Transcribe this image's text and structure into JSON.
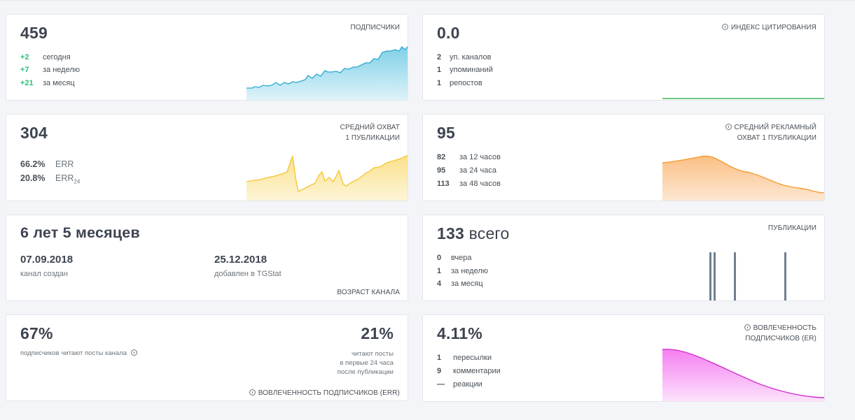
{
  "subscribers": {
    "value": "459",
    "caption": "ПОДПИСЧИКИ",
    "stats": [
      {
        "num": "+2",
        "label": "сегодня"
      },
      {
        "num": "+7",
        "label": "за неделю"
      },
      {
        "num": "+21",
        "label": "за месяц"
      }
    ],
    "color": "#2aa9cf"
  },
  "citation": {
    "value": "0.0",
    "caption": "ИНДЕКС ЦИТИРОВАНИЯ",
    "icon": "info-icon",
    "stats": [
      {
        "num": "2",
        "label": "уп. каналов"
      },
      {
        "num": "1",
        "label": "упоминаний"
      },
      {
        "num": "1",
        "label": "репостов"
      }
    ],
    "color": "#3cb55a"
  },
  "reach": {
    "value": "304",
    "caption_line1": "СРЕДНИЙ ОХВАТ",
    "caption_line2": "1 ПУБЛИКАЦИИ",
    "err_value": "66.2%",
    "err_label": "ERR",
    "err24_value": "20.8%",
    "err24_label": "ERR",
    "err24_sub": "24",
    "color": "#f5c42d"
  },
  "ad_reach": {
    "value": "95",
    "caption_line1": "СРЕДНИЙ РЕКЛАМНЫЙ",
    "caption_line2": "ОХВАТ 1 ПУБЛИКАЦИИ",
    "stats": [
      {
        "num": "82",
        "label": "за 12 часов"
      },
      {
        "num": "95",
        "label": "за 24 часа"
      },
      {
        "num": "113",
        "label": "за 48 часов"
      }
    ],
    "color": "#f59a2e"
  },
  "age": {
    "value": "6 лет 5 месяцев",
    "created_date": "07.09.2018",
    "created_label": "канал создан",
    "added_date": "25.12.2018",
    "added_label": "добавлен в TGStat",
    "caption": "ВОЗРАСТ КАНАЛА"
  },
  "posts": {
    "value": "133",
    "suffix": "всего",
    "caption": "ПУБЛИКАЦИИ",
    "stats": [
      {
        "num": "0",
        "label": "вчера"
      },
      {
        "num": "1",
        "label": "за неделю"
      },
      {
        "num": "4",
        "label": "за месяц"
      }
    ],
    "color": "#6e7f8f"
  },
  "engagement_err": {
    "percent_left": "67%",
    "label_left": "подписчиков читают посты канала",
    "percent_right": "21%",
    "label_right_lines": [
      "читают посты",
      "в первые 24 часа",
      "после публикации"
    ],
    "caption": "ВОВЛЕЧЕННОСТЬ ПОДПИСЧИКОВ (ERR)"
  },
  "engagement_er": {
    "value": "4.11%",
    "caption_line1": "ВОВЛЕЧЕННОСТЬ",
    "caption_line2": "ПОДПИСЧИКОВ (ER)",
    "stats": [
      {
        "num": "1",
        "label": "пересылки"
      },
      {
        "num": "9",
        "label": "комментарии"
      },
      {
        "num": "—",
        "label": "реакции"
      }
    ],
    "color": "#ee3ee8"
  }
}
